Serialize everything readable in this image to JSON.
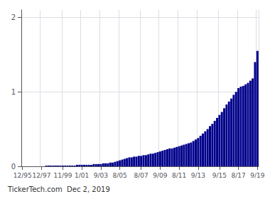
{
  "chart_data": {
    "type": "bar",
    "annotation": "TickerTech.com  Dec 2, 2019",
    "color": "#00008B",
    "categories": [
      "12/95",
      null,
      null,
      null,
      null,
      null,
      null,
      null,
      "12/97",
      null,
      null,
      null,
      null,
      null,
      null,
      null,
      null,
      "11/99",
      null,
      null,
      null,
      null,
      null,
      null,
      null,
      "1/01",
      null,
      null,
      null,
      null,
      null,
      null,
      null,
      "9/03",
      null,
      null,
      null,
      null,
      null,
      null,
      null,
      "8/05",
      null,
      null,
      null,
      null,
      null,
      null,
      null,
      null,
      "8/07",
      null,
      null,
      null,
      null,
      null,
      null,
      null,
      "9/09",
      null,
      null,
      null,
      null,
      null,
      null,
      null,
      "8/11",
      null,
      null,
      null,
      null,
      null,
      null,
      null,
      "9/13",
      null,
      null,
      null,
      null,
      null,
      null,
      null,
      null,
      "9/15",
      null,
      null,
      null,
      null,
      null,
      null,
      null,
      "8/17",
      null,
      null,
      null,
      null,
      null,
      null,
      null,
      "9/19"
    ],
    "values": [
      0.0,
      0.0,
      0.0,
      0.0,
      0.0,
      0.0,
      0.0,
      0.0,
      0.0,
      0.0,
      0.01,
      0.01,
      0.01,
      0.01,
      0.01,
      0.01,
      0.01,
      0.01,
      0.01,
      0.01,
      0.01,
      0.01,
      0.01,
      0.02,
      0.02,
      0.02,
      0.02,
      0.02,
      0.02,
      0.02,
      0.03,
      0.03,
      0.03,
      0.03,
      0.04,
      0.04,
      0.04,
      0.05,
      0.05,
      0.06,
      0.07,
      0.08,
      0.09,
      0.1,
      0.11,
      0.12,
      0.12,
      0.13,
      0.13,
      0.14,
      0.14,
      0.15,
      0.15,
      0.16,
      0.17,
      0.17,
      0.18,
      0.19,
      0.2,
      0.21,
      0.22,
      0.23,
      0.24,
      0.24,
      0.25,
      0.26,
      0.27,
      0.28,
      0.29,
      0.3,
      0.31,
      0.32,
      0.34,
      0.36,
      0.38,
      0.41,
      0.44,
      0.47,
      0.5,
      0.54,
      0.57,
      0.61,
      0.65,
      0.69,
      0.73,
      0.78,
      0.83,
      0.87,
      0.91,
      0.96,
      1.0,
      1.05,
      1.07,
      1.08,
      1.1,
      1.12,
      1.15,
      1.18,
      1.4,
      1.55
    ],
    "ylim": [
      0,
      2.1
    ],
    "yticks": [
      0,
      1,
      2
    ],
    "grid": true
  }
}
